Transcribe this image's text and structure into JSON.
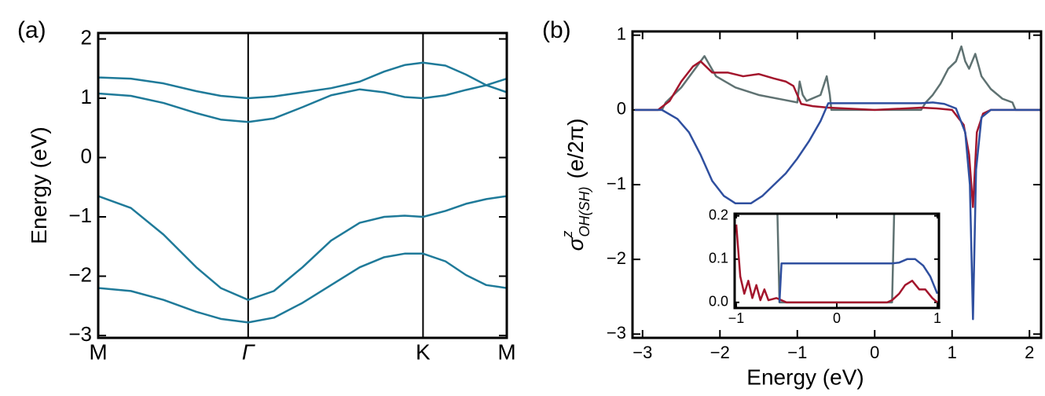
{
  "chart_data": [
    {
      "type": "line",
      "label": "(a)",
      "ylabel": "Energy (eV)",
      "x": [
        0,
        0.08,
        0.16,
        0.24,
        0.3,
        0.367,
        0.43,
        0.5,
        0.57,
        0.64,
        0.7,
        0.75,
        0.795,
        0.85,
        0.9,
        0.95,
        1
      ],
      "series": [
        {
          "color": "#1f7a99",
          "values": [
            1.35,
            1.33,
            1.25,
            1.12,
            1.04,
            1.0,
            1.03,
            1.1,
            1.17,
            1.28,
            1.45,
            1.56,
            1.6,
            1.55,
            1.4,
            1.22,
            1.1
          ]
        },
        {
          "color": "#1f7a99",
          "values": [
            1.08,
            1.04,
            0.92,
            0.75,
            0.64,
            0.6,
            0.66,
            0.85,
            1.05,
            1.15,
            1.1,
            1.02,
            1.0,
            1.05,
            1.14,
            1.22,
            1.33
          ]
        },
        {
          "color": "#1f7a99",
          "values": [
            -0.65,
            -0.85,
            -1.3,
            -1.85,
            -2.2,
            -2.4,
            -2.25,
            -1.85,
            -1.4,
            -1.1,
            -1.0,
            -0.98,
            -1.0,
            -0.9,
            -0.78,
            -0.7,
            -0.65
          ]
        },
        {
          "color": "#1f7a99",
          "values": [
            -2.2,
            -2.25,
            -2.4,
            -2.6,
            -2.72,
            -2.78,
            -2.7,
            -2.45,
            -2.15,
            -1.85,
            -1.68,
            -1.62,
            -1.62,
            -1.75,
            -1.98,
            -2.15,
            -2.2
          ]
        }
      ],
      "xlim": [
        0,
        1
      ],
      "xticks": [
        {
          "value": 0,
          "label": "M"
        },
        {
          "value": 0.367,
          "label": "Γ"
        },
        {
          "value": 0.795,
          "label": "K"
        },
        {
          "value": 1,
          "label": "M"
        }
      ],
      "ylim": [
        -3.04,
        2.1
      ],
      "yticks": [
        {
          "value": -3,
          "label": "−3"
        },
        {
          "value": -2,
          "label": "−2"
        },
        {
          "value": -1,
          "label": "−1"
        },
        0,
        1,
        2
      ],
      "grid": true
    },
    {
      "type": "line",
      "label": "(b)",
      "xlabel": "Energy (eV)",
      "ylabel": "σ",
      "ylabel_sup": "z",
      "ylabel_sub": "OH(SH)",
      "ylabel_unit": "(e/2π)",
      "series": [
        {
          "color": "#5f7272",
          "x": [
            -3.1,
            -2.75,
            -2.7,
            -2.5,
            -2.3,
            -2.2,
            -2.05,
            -1.8,
            -1.5,
            -1.2,
            -1.0,
            -0.97,
            -0.93,
            -0.88,
            -0.7,
            -0.62,
            -0.58,
            -0.56,
            0.6,
            0.66,
            0.75,
            0.85,
            0.95,
            1.05,
            1.12,
            1.17,
            1.22,
            1.3,
            1.38,
            1.5,
            1.65,
            1.78,
            1.82,
            2.15
          ],
          "values": [
            0,
            0,
            0.1,
            0.3,
            0.58,
            0.72,
            0.45,
            0.3,
            0.2,
            0.14,
            0.1,
            0.38,
            0.2,
            0.12,
            0.2,
            0.45,
            0.2,
            0,
            0,
            0.1,
            0.2,
            0.35,
            0.55,
            0.65,
            0.85,
            0.65,
            0.55,
            0.75,
            0.45,
            0.28,
            0.15,
            0.1,
            0,
            0
          ]
        },
        {
          "color": "#a3152c",
          "x": [
            -3.1,
            -2.8,
            -2.65,
            -2.5,
            -2.35,
            -2.25,
            -2.1,
            -1.9,
            -1.7,
            -1.5,
            -1.3,
            -1.15,
            -1.05,
            -0.95,
            -0.8,
            -0.6,
            0,
            0.6,
            0.8,
            1.0,
            1.15,
            1.22,
            1.27,
            1.32,
            1.4,
            1.5,
            2.15
          ],
          "values": [
            0,
            0,
            0.12,
            0.38,
            0.58,
            0.65,
            0.5,
            0.5,
            0.45,
            0.48,
            0.42,
            0.38,
            0.32,
            0.08,
            0.05,
            0.03,
            0,
            0.03,
            0.02,
            0,
            -0.2,
            -0.6,
            -1.3,
            -0.3,
            -0.05,
            0,
            0
          ]
        },
        {
          "color": "#2f4f9f",
          "x": [
            -3.1,
            -2.75,
            -2.55,
            -2.4,
            -2.25,
            -2.1,
            -1.95,
            -1.8,
            -1.6,
            -1.45,
            -1.3,
            -1.15,
            -1.0,
            -0.85,
            -0.7,
            -0.6,
            0.6,
            0.75,
            0.9,
            1.05,
            1.17,
            1.23,
            1.27,
            1.31,
            1.38,
            1.5,
            2.15
          ],
          "values": [
            0,
            0,
            -0.12,
            -0.3,
            -0.6,
            -0.95,
            -1.15,
            -1.25,
            -1.25,
            -1.15,
            -1.0,
            -0.85,
            -0.65,
            -0.42,
            -0.15,
            0.09,
            0.09,
            0.1,
            0.08,
            0.02,
            -0.3,
            -1.0,
            -2.8,
            -0.8,
            -0.1,
            0,
            0
          ]
        }
      ],
      "xlim": [
        -3.13,
        2.15
      ],
      "xticks": [
        {
          "value": -3,
          "label": "−3"
        },
        {
          "value": -2,
          "label": "−2"
        },
        {
          "value": -1,
          "label": "−1"
        },
        0,
        1,
        2
      ],
      "ylim": [
        -3.05,
        1.05
      ],
      "yticks": [
        {
          "value": -3,
          "label": "−3"
        },
        {
          "value": -2,
          "label": "−2"
        },
        {
          "value": -1,
          "label": "−1"
        },
        0,
        1
      ],
      "grid": false
    },
    {
      "type": "line",
      "series": [
        {
          "color": "#5f7272",
          "x": [
            -0.6,
            -0.57,
            0.55,
            0.58
          ],
          "values": [
            0.3,
            0,
            0,
            0.3
          ]
        },
        {
          "color": "#a3152c",
          "x": [
            -1.0,
            -0.96,
            -0.92,
            -0.88,
            -0.84,
            -0.8,
            -0.76,
            -0.72,
            -0.68,
            -0.6,
            -0.5,
            0,
            0.5,
            0.55,
            0.62,
            0.68,
            0.75,
            0.82,
            0.88,
            0.95,
            1.0
          ],
          "values": [
            0.18,
            0.06,
            0.02,
            0.05,
            0.01,
            0.04,
            0.005,
            0.03,
            0.005,
            0.01,
            0,
            0,
            0,
            0.005,
            0.02,
            0.04,
            0.05,
            0.03,
            0.03,
            0.01,
            0
          ]
        },
        {
          "color": "#2f4f9f",
          "x": [
            -0.57,
            -0.55,
            0.55,
            0.62,
            0.7,
            0.78,
            0.86,
            0.93,
            1.0
          ],
          "values": [
            0,
            0.09,
            0.09,
            0.092,
            0.1,
            0.1,
            0.085,
            0.06,
            0.02
          ]
        }
      ],
      "xlim": [
        -1.016,
        1.016
      ],
      "xticks": [
        {
          "value": -1,
          "label": "−1"
        },
        0,
        1
      ],
      "ylim": [
        -0.013,
        0.205
      ],
      "yticks": [
        {
          "value": 0,
          "label": "0.0"
        },
        {
          "value": 0.1,
          "label": "0.1"
        },
        {
          "value": 0.2,
          "label": "0.2"
        }
      ],
      "grid": false
    }
  ]
}
